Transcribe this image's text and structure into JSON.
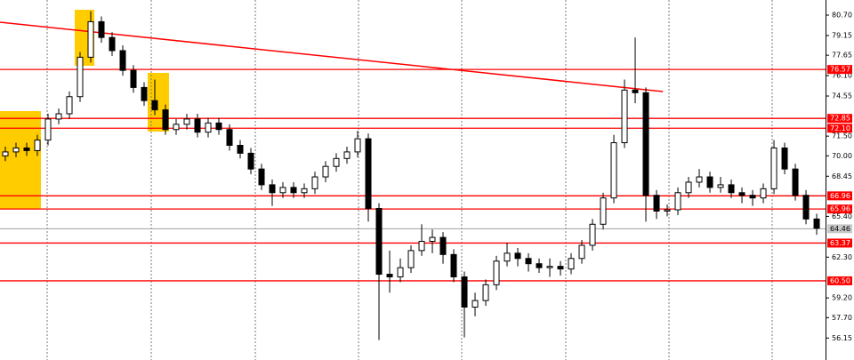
{
  "chart_data": {
    "type": "candlestick",
    "open": [
      70.0,
      70.3,
      70.6,
      70.4,
      71.2,
      72.8,
      73.2,
      74.5,
      77.5,
      80.2,
      79.0,
      78.0,
      76.5,
      75.2,
      74.2,
      73.5,
      72.0,
      72.4,
      72.8,
      71.8,
      72.5,
      72.0,
      70.8,
      70.2,
      69.0,
      67.8,
      67.2,
      67.6,
      67.2,
      67.5,
      68.4,
      69.2,
      69.8,
      70.3,
      71.3,
      66.0,
      61.0,
      60.8,
      61.5,
      62.8,
      63.5,
      63.8,
      62.5,
      60.8,
      58.5,
      59.0,
      60.2,
      62.0,
      62.6,
      62.2,
      61.8,
      61.5,
      61.6,
      61.4,
      62.2,
      63.2,
      64.8,
      66.8,
      71.0,
      75.0,
      74.8,
      67.0,
      65.8,
      65.9,
      67.2,
      68.0,
      68.4,
      67.6,
      67.8,
      67.2,
      67.0,
      66.8,
      67.5,
      70.6,
      69.0,
      67.0,
      65.2
    ],
    "high": [
      70.7,
      71.0,
      71.0,
      71.6,
      73.2,
      73.6,
      74.9,
      77.9,
      81.0,
      80.6,
      79.4,
      78.4,
      76.9,
      75.6,
      75.8,
      73.9,
      72.8,
      73.2,
      73.2,
      72.9,
      72.9,
      72.4,
      71.2,
      70.6,
      69.4,
      68.2,
      68.0,
      68.0,
      67.9,
      68.8,
      69.6,
      70.2,
      70.7,
      71.9,
      71.7,
      66.4,
      62.8,
      62.2,
      63.2,
      64.8,
      64.4,
      64.2,
      62.9,
      61.2,
      59.6,
      60.6,
      62.4,
      63.4,
      63.0,
      62.6,
      62.2,
      62.2,
      62.0,
      62.6,
      63.6,
      65.2,
      67.2,
      71.6,
      75.8,
      79.0,
      75.2,
      67.4,
      66.3,
      67.6,
      68.4,
      69.0,
      68.8,
      68.4,
      68.2,
      67.6,
      67.4,
      67.9,
      71.2,
      71.0,
      69.4,
      67.4,
      65.6
    ],
    "low": [
      69.6,
      69.9,
      70.0,
      70.0,
      70.8,
      72.4,
      72.8,
      74.1,
      77.1,
      78.6,
      77.6,
      76.1,
      74.8,
      73.8,
      73.1,
      71.6,
      71.6,
      72.0,
      71.4,
      71.4,
      71.6,
      70.4,
      69.8,
      68.6,
      67.4,
      66.2,
      66.8,
      66.8,
      66.8,
      67.1,
      68.0,
      68.8,
      69.4,
      69.9,
      65.0,
      56.0,
      59.6,
      60.4,
      61.1,
      62.4,
      62.6,
      61.8,
      60.4,
      56.2,
      57.8,
      58.6,
      59.8,
      61.6,
      61.6,
      61.2,
      61.1,
      60.8,
      60.9,
      61.0,
      61.8,
      62.8,
      64.4,
      66.4,
      70.6,
      74.0,
      65.0,
      65.2,
      65.4,
      65.5,
      66.8,
      67.6,
      67.2,
      67.2,
      66.8,
      66.4,
      66.2,
      66.4,
      67.1,
      68.6,
      66.6,
      64.8,
      64.0
    ],
    "close": [
      70.3,
      70.6,
      70.4,
      71.2,
      72.8,
      73.2,
      74.5,
      77.5,
      80.2,
      79.0,
      78.0,
      76.5,
      75.2,
      74.2,
      73.5,
      72.0,
      72.4,
      72.8,
      71.8,
      72.5,
      72.0,
      70.8,
      70.2,
      69.0,
      67.8,
      67.2,
      67.6,
      67.2,
      67.5,
      68.4,
      69.2,
      69.8,
      70.3,
      71.3,
      66.0,
      61.0,
      60.8,
      61.5,
      62.8,
      63.5,
      63.8,
      62.5,
      60.8,
      58.5,
      59.0,
      60.2,
      62.0,
      62.6,
      62.2,
      61.8,
      61.5,
      61.6,
      61.4,
      62.2,
      63.2,
      64.8,
      66.8,
      71.0,
      75.0,
      74.8,
      67.0,
      65.8,
      65.9,
      67.2,
      68.0,
      68.4,
      67.6,
      67.8,
      67.2,
      67.0,
      66.8,
      67.5,
      70.6,
      69.0,
      67.0,
      65.2,
      64.5
    ],
    "xlim": [
      -0.5,
      76.83
    ],
    "ylim": [
      54.48,
      81.85
    ],
    "yticks": [
      {
        "value": 80.7,
        "label": "80.70"
      },
      79.15,
      77.65,
      {
        "value": 76.1,
        "label": "76.10"
      },
      74.55,
      {
        "value": 71.5,
        "label": "71.50"
      },
      {
        "value": 70.0,
        "label": "70.00"
      },
      68.45,
      {
        "value": 65.4,
        "label": "65.40"
      },
      {
        "value": 62.3,
        "label": "62.30"
      },
      {
        "value": 59.2,
        "label": "59.20"
      },
      {
        "value": 57.7,
        "label": "57.70"
      },
      56.15
    ],
    "levels": [
      {
        "value": 76.57,
        "label": "76.57"
      },
      {
        "value": 72.85,
        "label": "72.85"
      },
      {
        "value": 72.1,
        "label": "72.10"
      },
      {
        "value": 66.96,
        "label": "66.96"
      },
      {
        "value": 65.96,
        "label": "65.96"
      },
      {
        "value": 63.37,
        "label": "63.37"
      },
      {
        "value": 60.5,
        "label": "60.50"
      }
    ],
    "level_color": "#ff0000",
    "last_price": {
      "value": 64.46,
      "label": "64.46"
    },
    "trendline": {
      "x": [
        -0.5,
        61.6
      ],
      "y": [
        80.16,
        74.89
      ]
    },
    "up_color": "#ffffff",
    "down_color": "#000000"
  }
}
